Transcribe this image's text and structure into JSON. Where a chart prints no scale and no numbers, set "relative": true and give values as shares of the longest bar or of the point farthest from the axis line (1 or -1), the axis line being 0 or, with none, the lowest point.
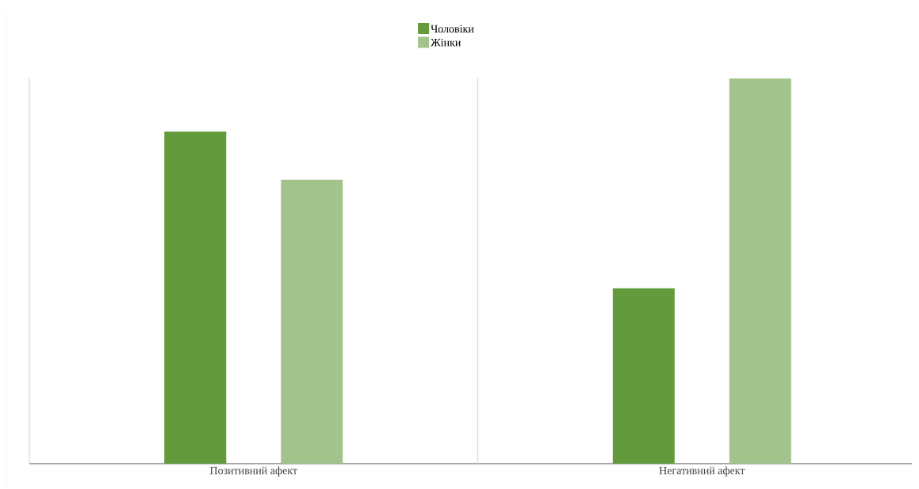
{
  "chart_data": {
    "type": "bar",
    "relative": true,
    "categories": [
      "Позитивний афект",
      "Негативний афект"
    ],
    "series": [
      {
        "name": "Чоловіки",
        "color": "#629a3c",
        "values": [
          0.862,
          0.455
        ]
      },
      {
        "name": "Жінки",
        "color": "#a2c48c",
        "values": [
          0.737,
          1
        ]
      }
    ],
    "grid": "x",
    "legend": "top"
  }
}
